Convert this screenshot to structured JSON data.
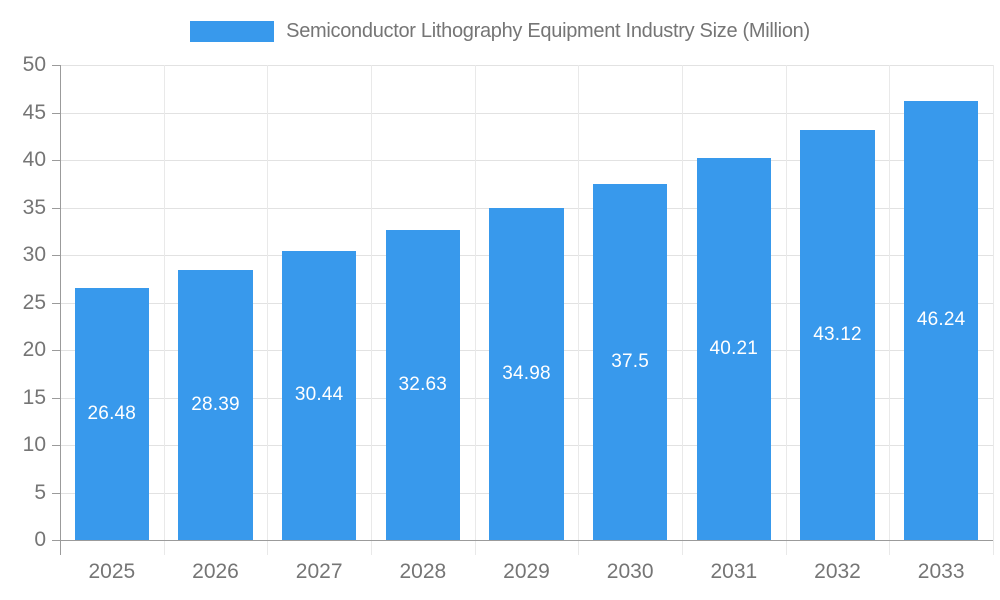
{
  "legend": {
    "series_label": "Semiconductor Lithography Equipment Industry Size (Million)"
  },
  "chart_data": {
    "type": "bar",
    "title": "Semiconductor Lithography Equipment Industry Size (Million)",
    "categories": [
      "2025",
      "2026",
      "2027",
      "2028",
      "2029",
      "2030",
      "2031",
      "2032",
      "2033"
    ],
    "values": [
      26.48,
      28.39,
      30.44,
      32.63,
      34.98,
      37.5,
      40.21,
      43.12,
      46.24
    ],
    "value_labels": [
      "26.48",
      "28.39",
      "30.44",
      "32.63",
      "34.98",
      "37.5",
      "40.21",
      "43.12",
      "46.24"
    ],
    "xlabel": "",
    "ylabel": "",
    "ylim": [
      0,
      50
    ],
    "ytick_interval": 5,
    "ytick_labels": [
      "0",
      "5",
      "10",
      "15",
      "20",
      "25",
      "30",
      "35",
      "40",
      "45",
      "50"
    ],
    "grid": true,
    "legend_position": "top",
    "value_label_position": "inside-center",
    "colors": {
      "bar": "#3899EC",
      "bar_label": "#FFFFFF",
      "axis_line": "#9B9B9B",
      "hgridline": "#E2E2E2",
      "vgridline": "#E9E9E9",
      "axis_label": "#757575",
      "title": "#757575",
      "background": "#FFFFFF"
    }
  }
}
